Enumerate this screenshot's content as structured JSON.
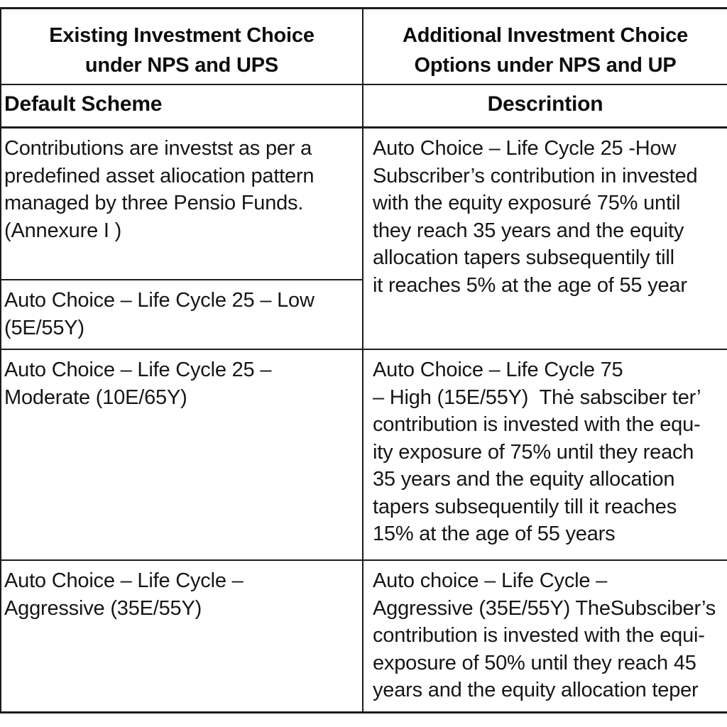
{
  "page": {
    "background": "#ffffff",
    "text_color": "#161616",
    "border_color": "#1c1c1c"
  },
  "table": {
    "columns": [
      {
        "header": "Existing Investment Choice\nunder NPS and UPS"
      },
      {
        "header": "Additional Investment Choice\nOptions under NPS and UP"
      }
    ],
    "subheader": {
      "left": "Default Scheme",
      "right": "Descrintion"
    },
    "row1": {
      "left_top": "Contributions are investst as per a\npredefined asset aliocation pattern\nmanaged by three Pensio Funds.\n(Annexure I )",
      "left_bottom": "Auto Choice – Life Cycle 25 – Low\n(5E/55Y)",
      "right": "Auto Choice – Life Cycle 25 -How\nSubscriber’s contribution in invested\nwith the equity exposuré 75% until\nthey reach 35 years and the equity\nallocation tapers subsequentily till\nit reaches 5% at the age of 55 year"
    },
    "row2": {
      "left": "Auto Choice – Life Cycle 25 –\nModerate (10E/65Y)",
      "right": "Auto Choice – Life Cycle 75\n– High (15E/55Y)  Thė sabsciber ter’\ncontribution is invested with the equ-\nity exposure of 75% until they reach\n35 years and the equity allocation\ntapers subsequentily till it reaches\n15% at the age of 55 years"
    },
    "row3": {
      "left": "Auto Choice – Life Cycle –\nAggressive (35E/55Y)",
      "right": "Auto choice – Life Cycle –\nAggressive (35E/55Y) TheSubsciber’s\ncontribution is invested with the equi-\nexposure of 50% until they reach 45\nyears and the equity allocation teper"
    }
  }
}
